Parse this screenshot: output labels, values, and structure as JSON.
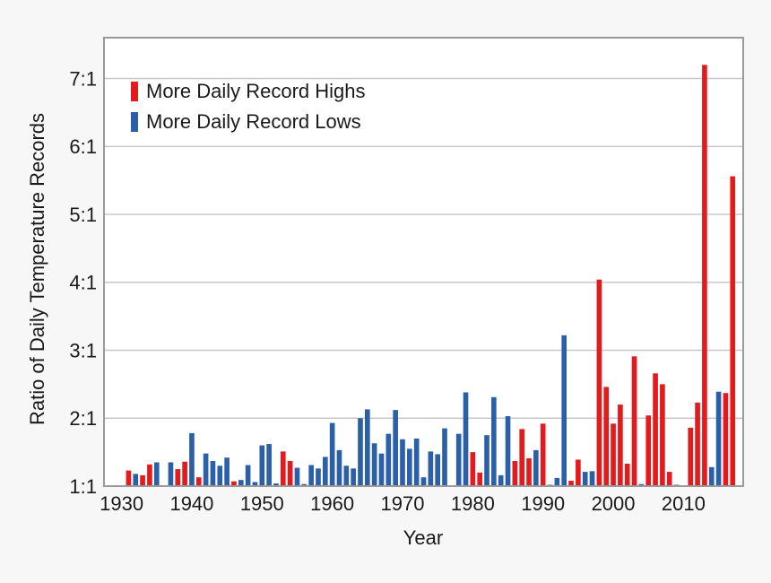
{
  "chart_data": {
    "type": "bar",
    "xlabel": "Year",
    "ylabel": "Ratio of Daily Temperature Records",
    "ylim": [
      1,
      7.6
    ],
    "xlim": [
      1927.5,
      2018.5
    ],
    "y_ticks": [
      {
        "value": 1,
        "label": "1:1"
      },
      {
        "value": 2,
        "label": "2:1"
      },
      {
        "value": 3,
        "label": "3:1"
      },
      {
        "value": 4,
        "label": "4:1"
      },
      {
        "value": 5,
        "label": "5:1"
      },
      {
        "value": 6,
        "label": "6:1"
      },
      {
        "value": 7,
        "label": "7:1"
      }
    ],
    "x_ticks": [
      1930,
      1940,
      1950,
      1960,
      1970,
      1980,
      1990,
      2000,
      2010
    ],
    "grid": "horizontal",
    "legend_position": "top-left",
    "series": [
      {
        "name": "More Daily Record Highs",
        "color": "#e41a1c",
        "points": [
          {
            "x": 1931,
            "y": 1.23
          },
          {
            "x": 1933,
            "y": 1.16
          },
          {
            "x": 1934,
            "y": 1.32
          },
          {
            "x": 1938,
            "y": 1.25
          },
          {
            "x": 1939,
            "y": 1.36
          },
          {
            "x": 1941,
            "y": 1.13
          },
          {
            "x": 1946,
            "y": 1.07
          },
          {
            "x": 1953,
            "y": 1.51
          },
          {
            "x": 1954,
            "y": 1.37
          },
          {
            "x": 1980,
            "y": 1.5
          },
          {
            "x": 1981,
            "y": 1.2
          },
          {
            "x": 1986,
            "y": 1.37
          },
          {
            "x": 1987,
            "y": 1.84
          },
          {
            "x": 1988,
            "y": 1.41
          },
          {
            "x": 1990,
            "y": 1.92
          },
          {
            "x": 1994,
            "y": 1.08
          },
          {
            "x": 1995,
            "y": 1.39
          },
          {
            "x": 1998,
            "y": 4.04
          },
          {
            "x": 1999,
            "y": 2.46
          },
          {
            "x": 2000,
            "y": 1.92
          },
          {
            "x": 2001,
            "y": 2.2
          },
          {
            "x": 2002,
            "y": 1.33
          },
          {
            "x": 2003,
            "y": 2.91
          },
          {
            "x": 2005,
            "y": 2.04
          },
          {
            "x": 2006,
            "y": 2.66
          },
          {
            "x": 2007,
            "y": 2.5
          },
          {
            "x": 2008,
            "y": 1.21
          },
          {
            "x": 2011,
            "y": 1.86
          },
          {
            "x": 2012,
            "y": 2.23
          },
          {
            "x": 2013,
            "y": 7.2
          },
          {
            "x": 2016,
            "y": 2.37
          },
          {
            "x": 2017,
            "y": 5.56
          }
        ]
      },
      {
        "name": "More Daily Record Lows",
        "color": "#2b5fa8",
        "points": [
          {
            "x": 1932,
            "y": 1.18
          },
          {
            "x": 1935,
            "y": 1.35
          },
          {
            "x": 1937,
            "y": 1.35
          },
          {
            "x": 1940,
            "y": 1.78
          },
          {
            "x": 1942,
            "y": 1.48
          },
          {
            "x": 1943,
            "y": 1.37
          },
          {
            "x": 1944,
            "y": 1.3
          },
          {
            "x": 1945,
            "y": 1.42
          },
          {
            "x": 1947,
            "y": 1.09
          },
          {
            "x": 1948,
            "y": 1.31
          },
          {
            "x": 1949,
            "y": 1.06
          },
          {
            "x": 1950,
            "y": 1.6
          },
          {
            "x": 1951,
            "y": 1.62
          },
          {
            "x": 1952,
            "y": 1.04
          },
          {
            "x": 1955,
            "y": 1.27
          },
          {
            "x": 1956,
            "y": 1.03
          },
          {
            "x": 1957,
            "y": 1.31
          },
          {
            "x": 1958,
            "y": 1.26
          },
          {
            "x": 1959,
            "y": 1.43
          },
          {
            "x": 1960,
            "y": 1.93
          },
          {
            "x": 1961,
            "y": 1.53
          },
          {
            "x": 1962,
            "y": 1.3
          },
          {
            "x": 1963,
            "y": 1.26
          },
          {
            "x": 1964,
            "y": 2.0
          },
          {
            "x": 1965,
            "y": 2.13
          },
          {
            "x": 1966,
            "y": 1.63
          },
          {
            "x": 1967,
            "y": 1.48
          },
          {
            "x": 1968,
            "y": 1.77
          },
          {
            "x": 1969,
            "y": 2.12
          },
          {
            "x": 1970,
            "y": 1.69
          },
          {
            "x": 1971,
            "y": 1.55
          },
          {
            "x": 1972,
            "y": 1.7
          },
          {
            "x": 1973,
            "y": 1.13
          },
          {
            "x": 1974,
            "y": 1.51
          },
          {
            "x": 1975,
            "y": 1.47
          },
          {
            "x": 1976,
            "y": 1.85
          },
          {
            "x": 1978,
            "y": 1.77
          },
          {
            "x": 1979,
            "y": 2.38
          },
          {
            "x": 1982,
            "y": 1.75
          },
          {
            "x": 1983,
            "y": 2.31
          },
          {
            "x": 1984,
            "y": 1.16
          },
          {
            "x": 1985,
            "y": 2.03
          },
          {
            "x": 1989,
            "y": 1.53
          },
          {
            "x": 1991,
            "y": 1.02
          },
          {
            "x": 1992,
            "y": 1.12
          },
          {
            "x": 1993,
            "y": 3.22
          },
          {
            "x": 1996,
            "y": 1.21
          },
          {
            "x": 1997,
            "y": 1.22
          },
          {
            "x": 2004,
            "y": 1.03
          },
          {
            "x": 2009,
            "y": 1.02
          },
          {
            "x": 2014,
            "y": 1.28
          },
          {
            "x": 2015,
            "y": 2.39
          }
        ]
      }
    ]
  }
}
